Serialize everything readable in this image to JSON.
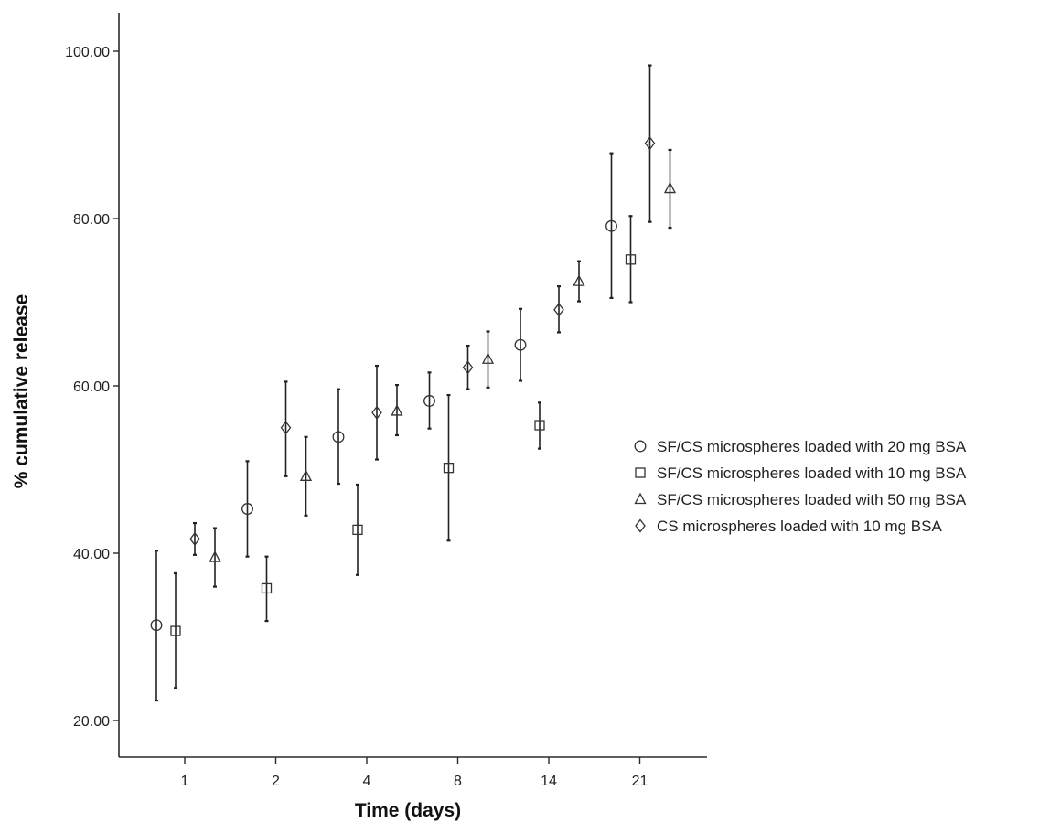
{
  "chart_data": {
    "type": "scatter",
    "xlabel": "Time (days)",
    "ylabel": "% cumulative release",
    "categories": [
      "1",
      "2",
      "4",
      "8",
      "14",
      "21"
    ],
    "ylim": [
      15,
      100
    ],
    "yticks": [
      20,
      40,
      60,
      80,
      100
    ],
    "ytick_labels": [
      "20.00",
      "40.00",
      "60.00",
      "80.00",
      "100.00"
    ],
    "grid": false,
    "legend_position": "right",
    "series": [
      {
        "name": "SF/CS microspheres loaded with 20 mg BSA",
        "marker": "circle",
        "mean": [
          31.4,
          45.3,
          53.9,
          58.2,
          64.9,
          79.1
        ],
        "lower": [
          22.4,
          39.6,
          48.3,
          54.9,
          60.6,
          70.5
        ],
        "upper": [
          40.3,
          51.0,
          59.6,
          61.6,
          69.2,
          87.8
        ]
      },
      {
        "name": "SF/CS microspheres loaded with 10 mg BSA",
        "marker": "square",
        "mean": [
          30.7,
          35.8,
          42.8,
          50.2,
          55.3,
          75.1
        ],
        "lower": [
          23.9,
          31.9,
          37.4,
          41.5,
          52.5,
          70.0
        ],
        "upper": [
          37.6,
          39.6,
          48.2,
          58.9,
          58.0,
          80.3
        ]
      },
      {
        "name": "SF/CS microspheres loaded with 50 mg BSA",
        "marker": "triangle",
        "mean": [
          39.5,
          49.2,
          57.0,
          63.2,
          72.5,
          83.6
        ],
        "lower": [
          36.0,
          44.5,
          54.1,
          59.8,
          70.1,
          78.9
        ],
        "upper": [
          43.0,
          53.9,
          60.1,
          66.5,
          74.9,
          88.2
        ]
      },
      {
        "name": "CS microspheres loaded with 10 mg BSA",
        "marker": "diamond",
        "mean": [
          41.7,
          55.0,
          56.8,
          62.2,
          69.1,
          89.0
        ],
        "lower": [
          39.8,
          49.2,
          51.2,
          59.6,
          66.4,
          79.6
        ],
        "upper": [
          43.6,
          60.5,
          62.4,
          64.8,
          71.9,
          98.3
        ]
      }
    ]
  }
}
